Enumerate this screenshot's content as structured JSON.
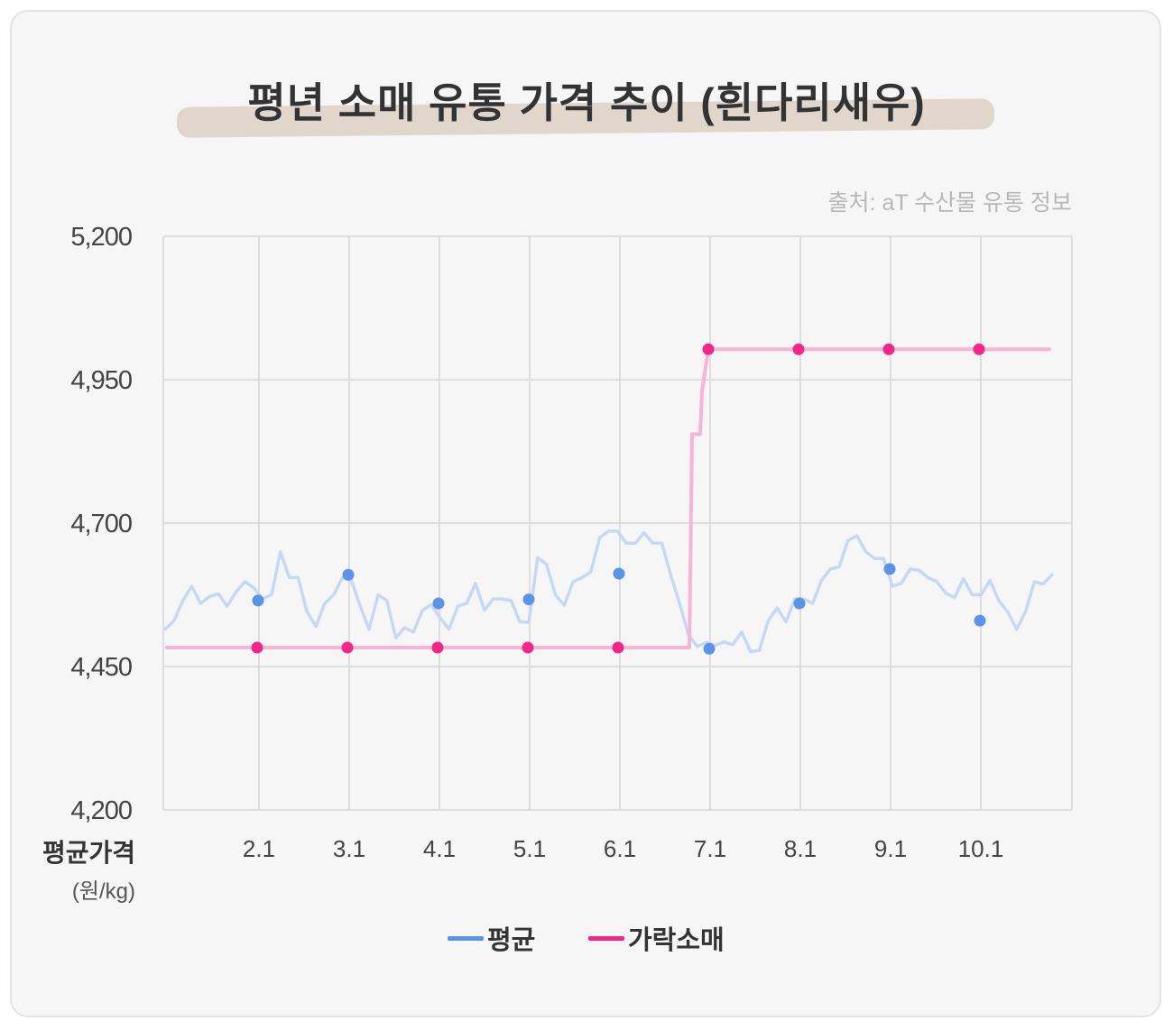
{
  "title": "평년 소매 유통 가격 추이 (흰다리새우)",
  "source": "출처: aT 수산물 유통 정보",
  "axis": {
    "ylabel_main": "평균가격",
    "ylabel_unit": "(원/kg)"
  },
  "colors": {
    "avg": "#5b93e6",
    "avg_line": "#c6d8f4",
    "garak": "#f0288a",
    "garak_line": "#f8b3d5",
    "grid": "#d6d6d6"
  },
  "chart_data": {
    "type": "line",
    "ylim": [
      4200,
      5200
    ],
    "yticks": [
      4200,
      4450,
      4700,
      4950,
      5200
    ],
    "ytick_labels": [
      "4,200",
      "4,450",
      "4,700",
      "4,950",
      "5,200"
    ],
    "categories": [
      "2.1",
      "3.1",
      "4.1",
      "5.1",
      "6.1",
      "7.1",
      "8.1",
      "9.1",
      "10.1"
    ],
    "grid": true,
    "legend_position": "bottom",
    "series": [
      {
        "name": "평균",
        "markers": [
          4565,
          4610,
          4560,
          4567,
          4612,
          4481,
          4560,
          4620,
          4530
        ],
        "trace": [
          4515,
          4530,
          4565,
          4590,
          4560,
          4572,
          4577,
          4555,
          4580,
          4598,
          4587,
          4568,
          4575,
          4650,
          4605,
          4605,
          4545,
          4520,
          4560,
          4575,
          4605,
          4600,
          4555,
          4515,
          4575,
          4565,
          4500,
          4518,
          4510,
          4548,
          4558,
          4535,
          4515,
          4555,
          4560,
          4595,
          4548,
          4568,
          4568,
          4565,
          4528,
          4527,
          4640,
          4628,
          4575,
          4557,
          4598,
          4605,
          4615,
          4675,
          4686,
          4686,
          4665,
          4665,
          4683,
          4665,
          4665,
          4610,
          4560,
          4505,
          4485,
          4492,
          4487,
          4493,
          4488,
          4510,
          4476,
          4478,
          4530,
          4552,
          4528,
          4568,
          4568,
          4560,
          4600,
          4620,
          4624,
          4670,
          4678,
          4650,
          4638,
          4638,
          4590,
          4595,
          4620,
          4618,
          4605,
          4598,
          4578,
          4570,
          4603,
          4575,
          4575,
          4600,
          4565,
          4545,
          4515,
          4545,
          4598,
          4594,
          4610
        ]
      },
      {
        "name": "가락소매",
        "markers": [
          4483,
          4483,
          4483,
          4483,
          4483,
          5003,
          5003,
          5003,
          5003
        ],
        "start": 4483,
        "end": 5003
      }
    ]
  },
  "legend": [
    {
      "label": "평균"
    },
    {
      "label": "가락소매"
    }
  ]
}
